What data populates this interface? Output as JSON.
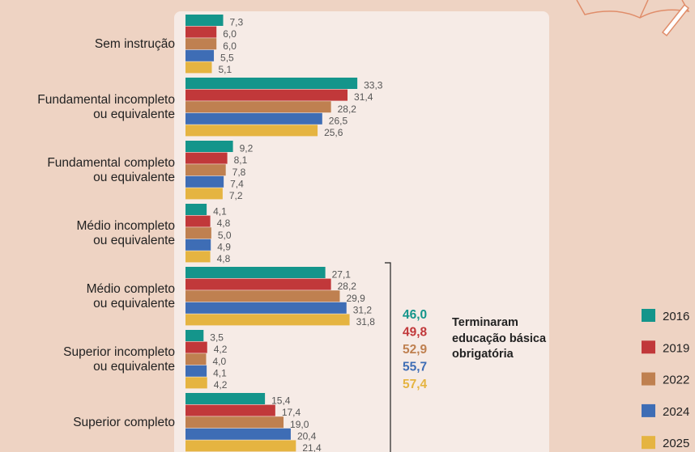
{
  "chart_data": {
    "type": "bar",
    "orientation": "horizontal",
    "categories": [
      "Sem instrução",
      "Fundamental incompleto\nou equivalente",
      "Fundamental completo\nou equivalente",
      "Médio incompleto\nou equivalente",
      "Médio completo\nou equivalente",
      "Superior incompleto\nou equivalente",
      "Superior completo"
    ],
    "series": [
      {
        "name": "2016",
        "color": "#14958b",
        "values": [
          7.3,
          33.3,
          9.2,
          4.1,
          27.1,
          3.5,
          15.4
        ],
        "value_labels": [
          "7,3",
          "33,3",
          "9,2",
          "4,1",
          "27,1",
          "3,5",
          "15,4"
        ]
      },
      {
        "name": "2019",
        "color": "#c1383a",
        "values": [
          6.0,
          31.4,
          8.1,
          4.8,
          28.2,
          4.2,
          17.4
        ],
        "value_labels": [
          "6,0",
          "31,4",
          "8,1",
          "4,8",
          "28,2",
          "4,2",
          "17,4"
        ]
      },
      {
        "name": "2022",
        "color": "#bf8050",
        "values": [
          6.0,
          28.2,
          7.8,
          5.0,
          29.9,
          4.0,
          19.0
        ],
        "value_labels": [
          "6,0",
          "28,2",
          "7,8",
          "5,0",
          "29,9",
          "4,0",
          "19,0"
        ]
      },
      {
        "name": "2024",
        "color": "#3e6db5",
        "values": [
          5.5,
          26.5,
          7.4,
          4.9,
          31.2,
          4.1,
          20.4
        ],
        "value_labels": [
          "5,5",
          "26,5",
          "7,4",
          "4,9",
          "31,2",
          "4,1",
          "20,4"
        ]
      },
      {
        "name": "2025",
        "color": "#e5b441",
        "values": [
          5.1,
          25.6,
          7.2,
          4.8,
          31.8,
          4.2,
          21.4
        ],
        "value_labels": [
          "5,1",
          "25,6",
          "7,2",
          "4,8",
          "31,8",
          "4,2",
          "21,4"
        ]
      }
    ],
    "annotation": {
      "values": [
        46.0,
        49.8,
        52.9,
        55.7,
        57.4
      ],
      "value_labels": [
        "46,0",
        "49,8",
        "52,9",
        "55,7",
        "57,4"
      ],
      "text": "Terminaram educação básica obrigatória"
    }
  }
}
